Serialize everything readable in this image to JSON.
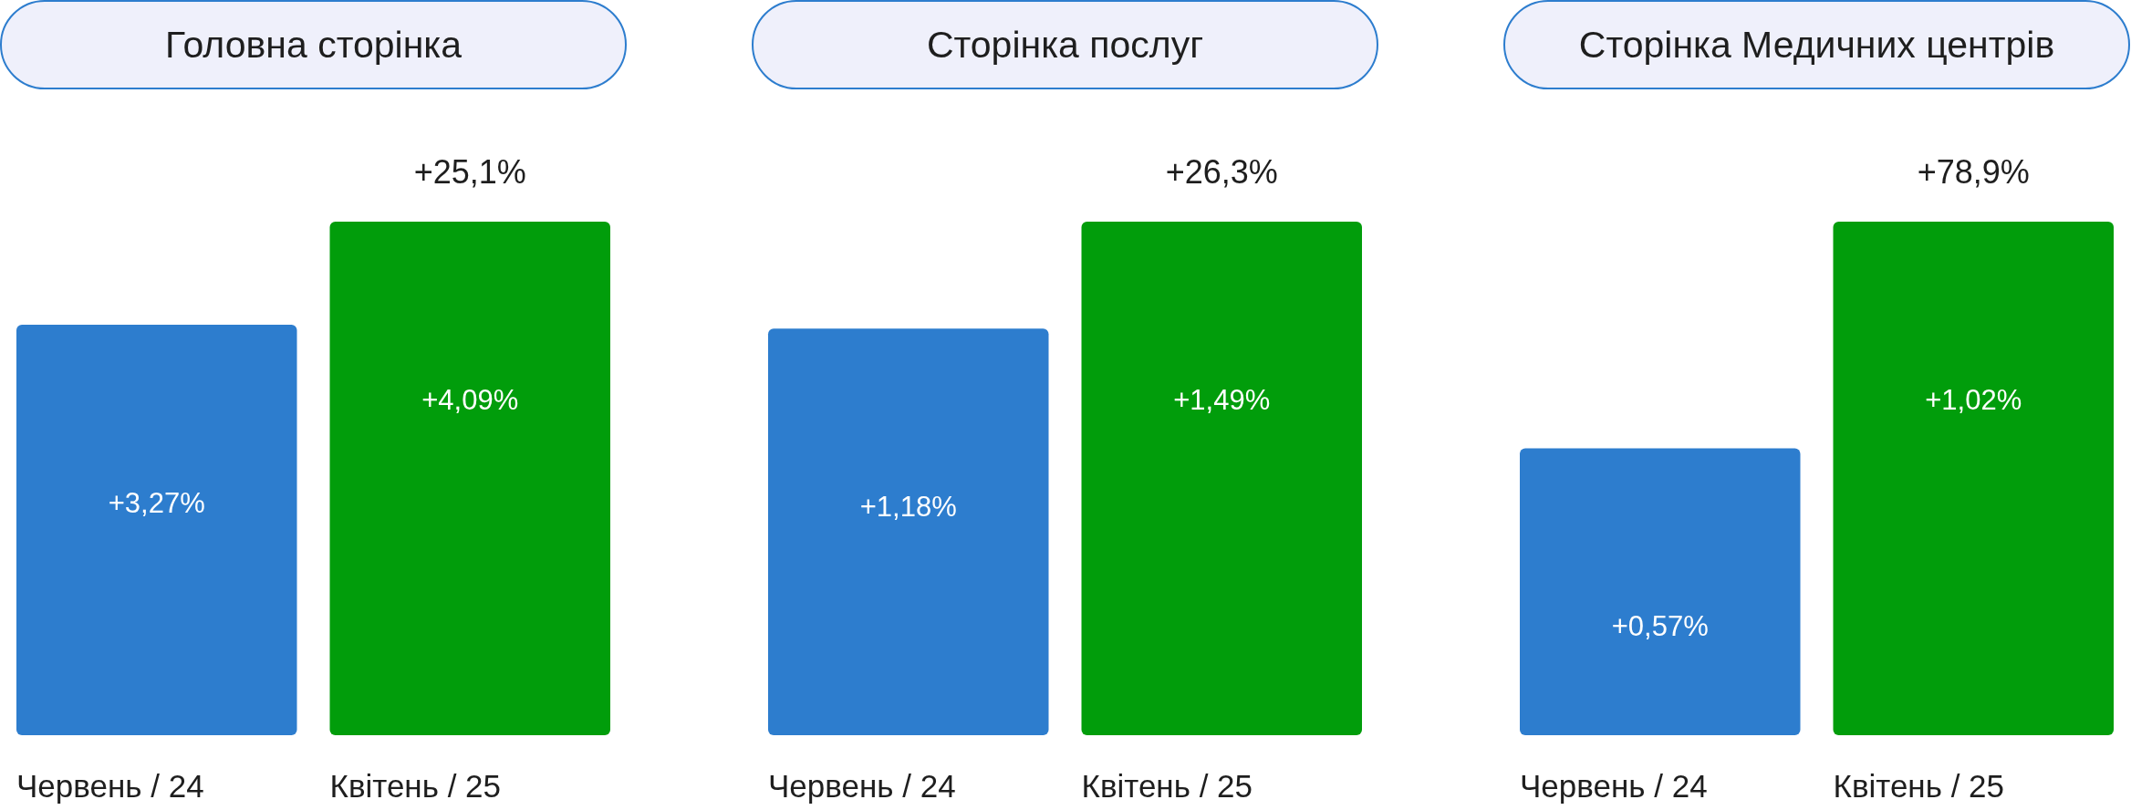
{
  "chart_data": [
    {
      "type": "bar",
      "title": "Головна сторінка",
      "categories": [
        "Червень / 24",
        "Квітень / 25"
      ],
      "values": [
        3.27,
        4.09
      ],
      "colors": [
        "#2d7dce",
        "#019d0b"
      ],
      "value_labels": [
        "+3,27%",
        "+4,09%"
      ],
      "annotations": [
        "+25,1%"
      ],
      "tick_labels": "x"
    },
    {
      "type": "bar",
      "title": "Сторінка послуг",
      "categories": [
        "Червень / 24",
        "Квітень / 25"
      ],
      "values": [
        1.18,
        1.49
      ],
      "colors": [
        "#2d7dce",
        "#019d0b"
      ],
      "value_labels": [
        "+1,18%",
        "+1,49%"
      ],
      "annotations": [
        "+26,3%"
      ],
      "tick_labels": "x"
    },
    {
      "type": "bar",
      "title": "Сторінка Медичних центрів",
      "categories": [
        "Червень / 24",
        "Квітень / 25"
      ],
      "values": [
        0.57,
        1.02
      ],
      "colors": [
        "#2d7dce",
        "#019d0b"
      ],
      "value_labels": [
        "+0,57%",
        "+1,02%"
      ],
      "annotations": [
        "+78,9%"
      ],
      "tick_labels": "x"
    }
  ]
}
